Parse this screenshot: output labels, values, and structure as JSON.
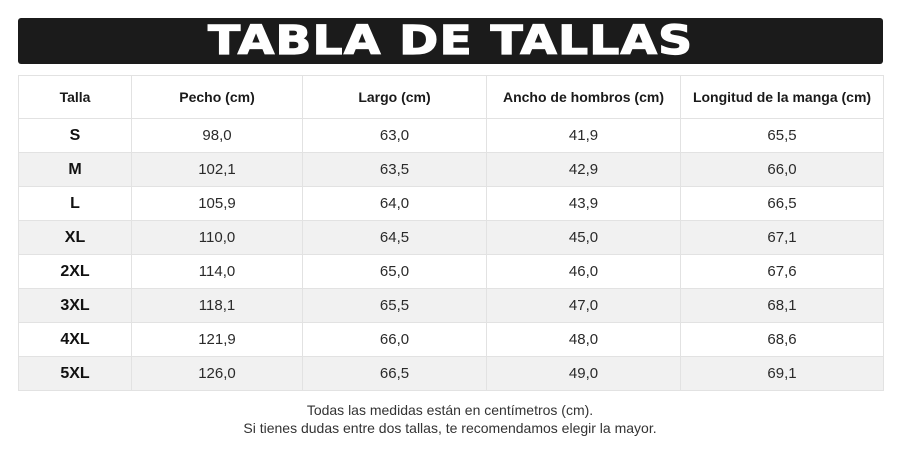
{
  "title": "TABLA DE TALLAS",
  "table": {
    "headers": [
      "Talla",
      "Pecho (cm)",
      "Largo (cm)",
      "Ancho de hombros (cm)",
      "Longitud de la manga (cm)"
    ],
    "rows": [
      [
        "S",
        "98,0",
        "63,0",
        "41,9",
        "65,5"
      ],
      [
        "M",
        "102,1",
        "63,5",
        "42,9",
        "66,0"
      ],
      [
        "L",
        "105,9",
        "64,0",
        "43,9",
        "66,5"
      ],
      [
        "XL",
        "110,0",
        "64,5",
        "45,0",
        "67,1"
      ],
      [
        "2XL",
        "114,0",
        "65,0",
        "46,0",
        "67,6"
      ],
      [
        "3XL",
        "118,1",
        "65,5",
        "47,0",
        "68,1"
      ],
      [
        "4XL",
        "121,9",
        "66,0",
        "48,0",
        "68,6"
      ],
      [
        "5XL",
        "126,0",
        "66,5",
        "49,0",
        "69,1"
      ]
    ]
  },
  "footnote": {
    "line1": "Todas las medidas están en centímetros (cm).",
    "line2": "Si tienes dudas entre dos tallas, te recomendamos elegir la mayor."
  }
}
